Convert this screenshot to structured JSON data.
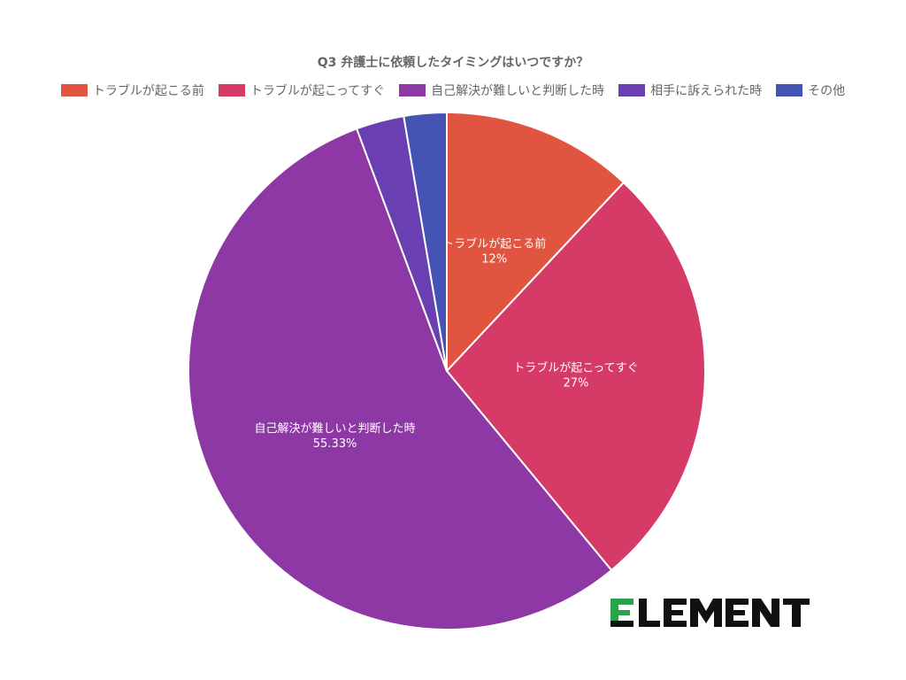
{
  "chart_data": {
    "type": "pie",
    "title": "Q3 弁護士に依頼したタイミングはいつですか？",
    "legend_position": "top",
    "slices": [
      {
        "label": "トラブルが起こる前",
        "value": 12,
        "display": "12%",
        "color": "#e05440"
      },
      {
        "label": "トラブルが起こってすぐ",
        "value": 27,
        "display": "27%",
        "color": "#d63a66"
      },
      {
        "label": "自己解決が難しいと判断した時",
        "value": 55.33,
        "display": "55.33%",
        "color": "#8e38a6"
      },
      {
        "label": "相手に訴えられた時",
        "value": 3,
        "display": "",
        "color": "#6a3fb2"
      },
      {
        "label": "その他",
        "value": 2.67,
        "display": "",
        "color": "#4553b4"
      }
    ]
  },
  "logo": {
    "text": "ELEMENT",
    "accent_color": "#2ba24a",
    "color": "#111111"
  }
}
